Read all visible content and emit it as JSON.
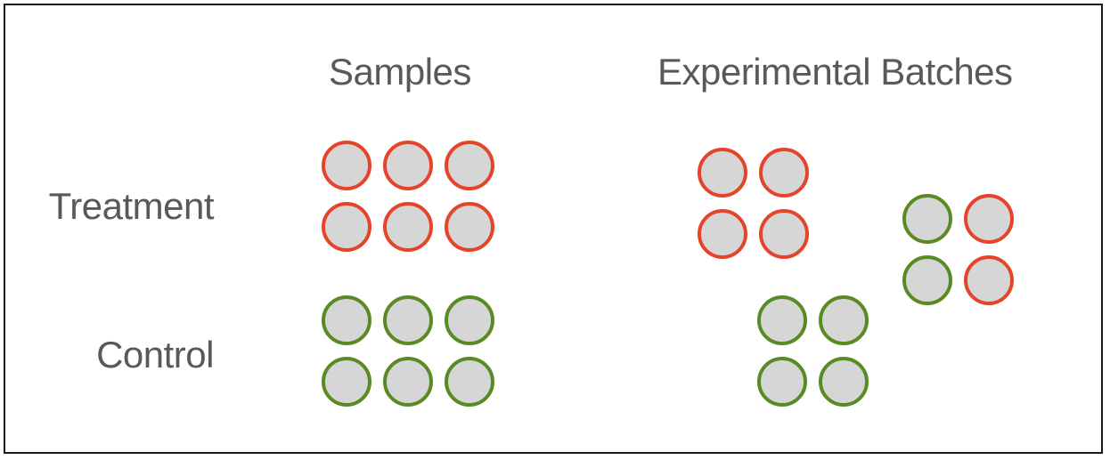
{
  "headers": {
    "samples": "Samples",
    "batches": "Experimental Batches"
  },
  "rows": {
    "treatment": "Treatment",
    "control": "Control"
  },
  "colors": {
    "treatment": "#e5442b",
    "control": "#5a8a23",
    "fill": "#d6d6d6",
    "text": "#595959"
  },
  "sample_groups": [
    {
      "group": "treatment",
      "count": 6
    },
    {
      "group": "control",
      "count": 6
    }
  ],
  "batches": [
    {
      "name": "batch-1",
      "samples": [
        "treatment",
        "treatment",
        "treatment",
        "treatment"
      ]
    },
    {
      "name": "batch-2",
      "samples": [
        "control",
        "treatment",
        "control",
        "treatment"
      ]
    },
    {
      "name": "batch-3",
      "samples": [
        "control",
        "control",
        "control",
        "control"
      ]
    }
  ]
}
